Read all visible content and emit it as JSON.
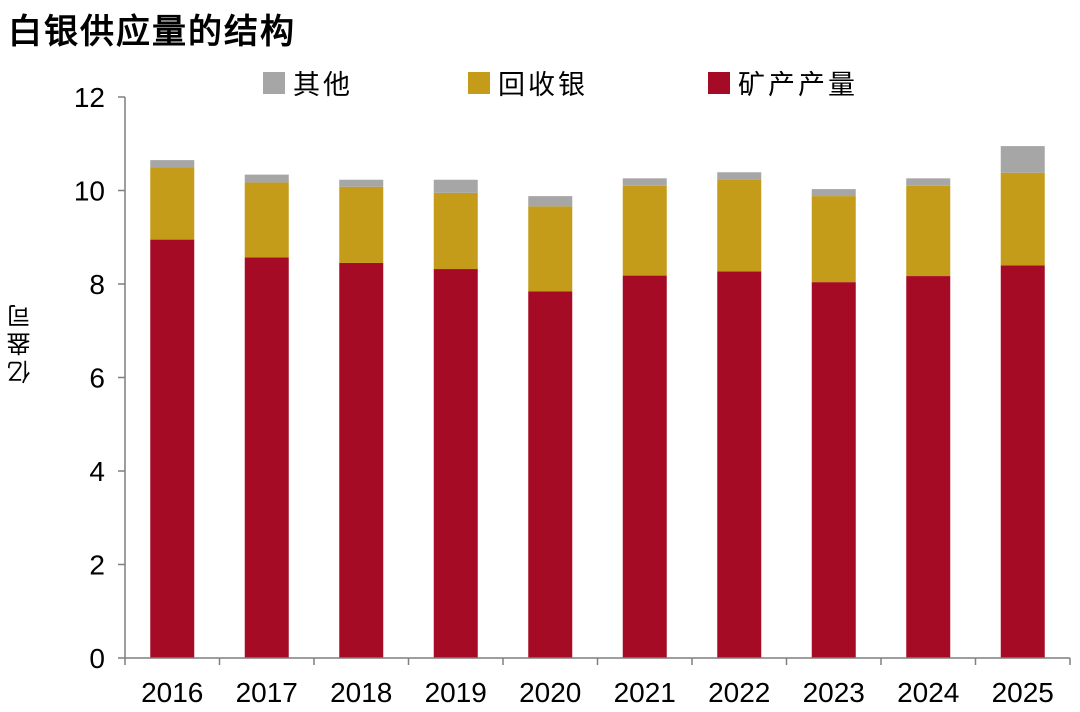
{
  "title": "白银供应量的结构",
  "chart_data": {
    "type": "bar",
    "stacked": true,
    "title": "白银供应量的结构",
    "xlabel": "",
    "ylabel": "亿盎司",
    "ylim": [
      0,
      12
    ],
    "yticks": [
      0,
      2,
      4,
      6,
      8,
      10,
      12
    ],
    "grid": false,
    "legend_position": "top",
    "categories": [
      "2016",
      "2017",
      "2018",
      "2019",
      "2020",
      "2021",
      "2022",
      "2023",
      "2024",
      "2025"
    ],
    "series": [
      {
        "name": "矿产产量",
        "color": "#A50B25",
        "values": [
          8.95,
          8.57,
          8.45,
          8.32,
          7.84,
          8.18,
          8.27,
          8.04,
          8.17,
          8.4
        ]
      },
      {
        "name": "回收银",
        "color": "#C49C19",
        "values": [
          1.55,
          1.6,
          1.63,
          1.63,
          1.82,
          1.92,
          1.97,
          1.84,
          1.93,
          1.98
        ]
      },
      {
        "name": "其他",
        "color": "#A6A6A6",
        "values": [
          0.15,
          0.17,
          0.15,
          0.28,
          0.22,
          0.16,
          0.15,
          0.15,
          0.16,
          0.57
        ]
      }
    ],
    "legend_order": [
      "其他",
      "回收银",
      "矿产产量"
    ]
  }
}
